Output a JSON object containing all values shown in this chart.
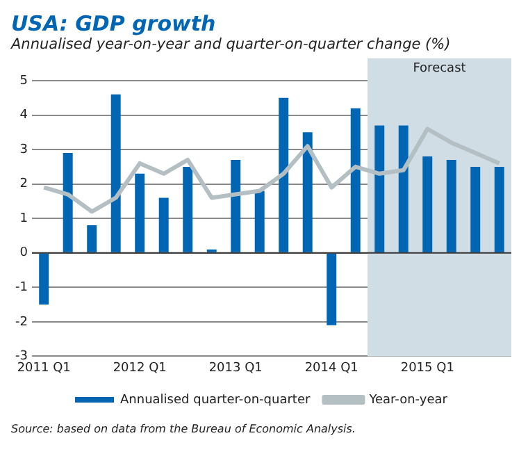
{
  "chart_data": {
    "type": "bar",
    "title": "USA: GDP growth",
    "subtitle": "Annualised year-on-year and quarter-on-quarter change (%)",
    "categories": [
      "2011 Q1",
      null,
      null,
      null,
      "2012 Q1",
      null,
      null,
      null,
      "2013 Q1",
      null,
      null,
      null,
      "2014 Q1",
      null,
      null,
      null,
      "2015 Q1",
      null,
      null,
      null
    ],
    "series": [
      {
        "name": "Annualised quarter-on-quarter",
        "color": "#0066b3",
        "values": [
          -1.5,
          2.9,
          0.8,
          4.6,
          2.3,
          1.6,
          2.5,
          0.1,
          2.7,
          1.8,
          4.5,
          3.5,
          -2.1,
          4.2,
          3.7,
          3.7,
          2.8,
          2.7,
          2.5,
          2.5
        ]
      },
      {
        "name": "Year-on-year",
        "type": "line",
        "color": "#b4bfc4",
        "values": [
          1.9,
          1.7,
          1.2,
          1.6,
          2.6,
          2.3,
          2.7,
          1.6,
          1.7,
          1.8,
          2.3,
          3.1,
          1.9,
          2.5,
          2.3,
          2.4,
          3.6,
          3.2,
          2.9,
          2.6
        ]
      }
    ],
    "ylim": [
      -3,
      5
    ],
    "yticks": [
      -3,
      -2,
      -1,
      0,
      1,
      2,
      3,
      4,
      5
    ],
    "grid": "y",
    "legend": "bottom",
    "line_style": "solid",
    "annotations": [
      "Forecast",
      "Source: based on data from the Bureau of Economic Analysis."
    ]
  }
}
